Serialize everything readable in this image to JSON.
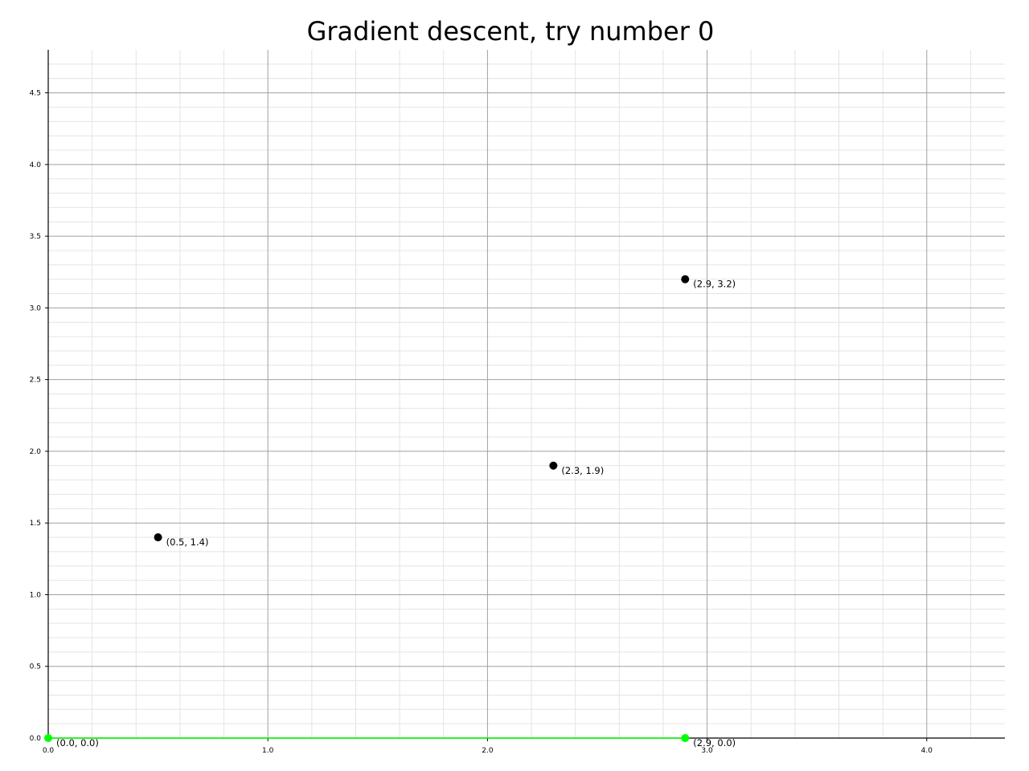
{
  "chart_data": {
    "type": "scatter",
    "title": "Gradient descent, try number 0",
    "xlabel": "",
    "ylabel": "",
    "xlim": [
      0,
      4.35
    ],
    "ylim": [
      0,
      4.8
    ],
    "grid": {
      "major": true,
      "minor": true
    },
    "x_ticks": [
      {
        "value": 0,
        "label": "0.0"
      },
      {
        "value": 1,
        "label": "1.0"
      },
      {
        "value": 2,
        "label": "2.0"
      },
      {
        "value": 3,
        "label": "3.0"
      },
      {
        "value": 4,
        "label": "4.0"
      }
    ],
    "y_ticks": [
      {
        "value": 0,
        "label": "0.0"
      },
      {
        "value": 0.5,
        "label": "0.5"
      },
      {
        "value": 1,
        "label": "1.0"
      },
      {
        "value": 1.5,
        "label": "1.5"
      },
      {
        "value": 2,
        "label": "2.0"
      },
      {
        "value": 2.5,
        "label": "2.5"
      },
      {
        "value": 3,
        "label": "3.0"
      },
      {
        "value": 3.5,
        "label": "3.5"
      },
      {
        "value": 4,
        "label": "4.0"
      },
      {
        "value": 4.5,
        "label": "4.5"
      }
    ],
    "series": [
      {
        "color": "#000000",
        "points": [
          {
            "x": 0.5,
            "y": 1.4,
            "label": "(0.5, 1.4)"
          },
          {
            "x": 2.3,
            "y": 1.9,
            "label": "(2.3, 1.9)"
          },
          {
            "x": 2.9,
            "y": 3.2,
            "label": "(2.9, 3.2)"
          }
        ]
      },
      {
        "color": "#00ff00",
        "line": true,
        "points": [
          {
            "x": 0.0,
            "y": 0.0,
            "label": "(0.0, 0.0)"
          },
          {
            "x": 2.9,
            "y": 0.0,
            "label": "(2.9, 0.0)"
          }
        ]
      }
    ]
  }
}
